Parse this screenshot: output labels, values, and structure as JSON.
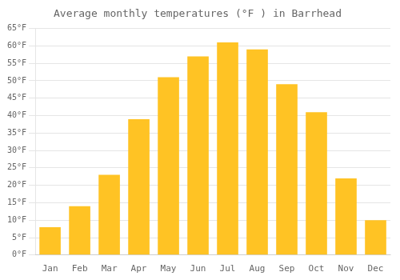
{
  "chart_data": {
    "type": "bar",
    "title": "Average monthly temperatures (°F ) in Barrhead",
    "categories": [
      "Jan",
      "Feb",
      "Mar",
      "Apr",
      "May",
      "Jun",
      "Jul",
      "Aug",
      "Sep",
      "Oct",
      "Nov",
      "Dec"
    ],
    "values": [
      8,
      14,
      23,
      39,
      51,
      57,
      61,
      59,
      49,
      41,
      22,
      10
    ],
    "color": "#FFC324",
    "ylim": [
      0,
      65
    ],
    "yticks": [
      {
        "value": 0,
        "label": "0°F"
      },
      {
        "value": 5,
        "label": "5°F"
      },
      {
        "value": 10,
        "label": "10°F"
      },
      {
        "value": 15,
        "label": "15°F"
      },
      {
        "value": 20,
        "label": "20°F"
      },
      {
        "value": 25,
        "label": "25°F"
      },
      {
        "value": 30,
        "label": "30°F"
      },
      {
        "value": 35,
        "label": "35°F"
      },
      {
        "value": 40,
        "label": "40°F"
      },
      {
        "value": 45,
        "label": "45°F"
      },
      {
        "value": 50,
        "label": "50°F"
      },
      {
        "value": 55,
        "label": "55°F"
      },
      {
        "value": 60,
        "label": "60°F"
      },
      {
        "value": 65,
        "label": "65°F"
      }
    ],
    "grid": true
  }
}
